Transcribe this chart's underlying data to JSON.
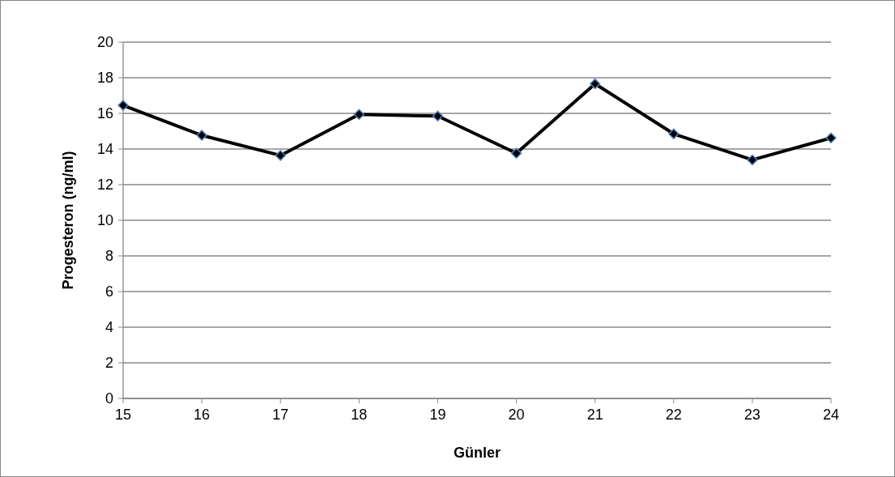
{
  "chart_data": {
    "type": "line",
    "xlabel": "Günler",
    "ylabel": "Progesteron (ng/ml)",
    "x": [
      15,
      16,
      17,
      18,
      19,
      20,
      21,
      22,
      23,
      24
    ],
    "series": [
      {
        "color": "#000000",
        "values": [
          16.45,
          14.77,
          13.64,
          15.94,
          15.85,
          13.76,
          17.66,
          14.85,
          13.39,
          14.62
        ]
      }
    ],
    "xlim": [
      15,
      24
    ],
    "xticks": [
      15,
      16,
      17,
      18,
      19,
      20,
      21,
      22,
      23,
      24
    ],
    "ylim": [
      0,
      20
    ],
    "yticks": [
      0,
      2,
      4,
      6,
      8,
      10,
      12,
      14,
      16,
      18,
      20
    ],
    "grid": "y",
    "marker": "diamond",
    "line_style": "solid"
  }
}
